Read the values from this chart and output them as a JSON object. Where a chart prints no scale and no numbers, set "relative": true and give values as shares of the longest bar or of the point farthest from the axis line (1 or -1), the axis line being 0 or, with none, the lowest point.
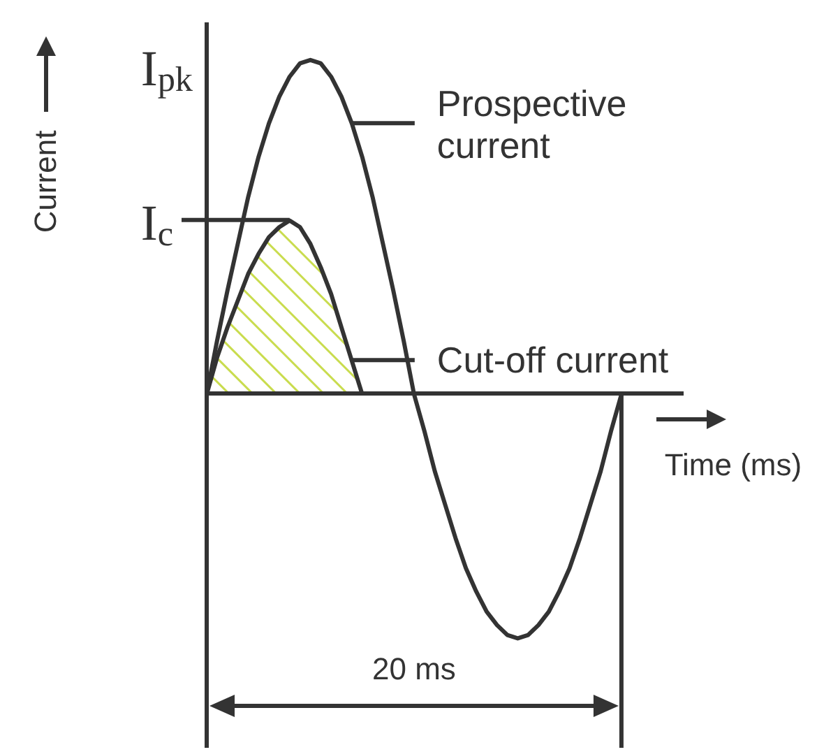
{
  "chart_data": {
    "type": "line",
    "relative": true,
    "xlabel": "Time (ms)",
    "ylabel": "Current",
    "legend": "right",
    "categories": [
      null,
      null,
      null,
      null,
      null,
      null,
      null,
      null,
      null,
      null,
      null,
      null,
      null,
      null,
      null,
      null,
      null,
      null,
      null,
      null,
      null,
      null,
      null,
      null,
      null,
      null,
      null,
      null,
      null,
      null,
      null,
      null,
      null,
      null,
      null,
      null,
      null,
      null,
      null,
      null,
      null,
      null,
      null,
      null,
      null,
      null,
      null
    ],
    "series": [
      {
        "name": "Prospective current",
        "type": "line",
        "color": "#333333",
        "values": [
          0,
          0.16,
          0.31,
          0.45,
          0.59,
          0.71,
          0.81,
          0.89,
          0.95,
          0.99,
          1,
          0.99,
          0.95,
          0.89,
          0.81,
          0.71,
          0.59,
          0.45,
          0.31,
          0.16,
          0,
          -0.11,
          -0.23,
          -0.33,
          -0.43,
          -0.52,
          -0.59,
          -0.65,
          -0.69,
          -0.72,
          -0.73,
          -0.72,
          -0.69,
          -0.65,
          -0.59,
          -0.52,
          -0.43,
          -0.33,
          -0.23,
          -0.11,
          0,
          null,
          null,
          null,
          null,
          null,
          null
        ]
      },
      {
        "name": "Cut-off current",
        "type": "area",
        "color": "#333333",
        "values": [
          0,
          0.11,
          0.2,
          0.28,
          0.36,
          0.42,
          0.47,
          0.5,
          0.52,
          0.5,
          0.45,
          0.38,
          0.3,
          0.2,
          0.1,
          0,
          null,
          null,
          null,
          null,
          null,
          null,
          null,
          null,
          null,
          null,
          null,
          null,
          null,
          null,
          null,
          null,
          null,
          null,
          null,
          null,
          null,
          null,
          null,
          null,
          null,
          null,
          null,
          null,
          null,
          null,
          null
        ]
      }
    ],
    "annotations": [
      "I$_{pk}$",
      "I$_{c}$",
      "20 ms"
    ]
  }
}
